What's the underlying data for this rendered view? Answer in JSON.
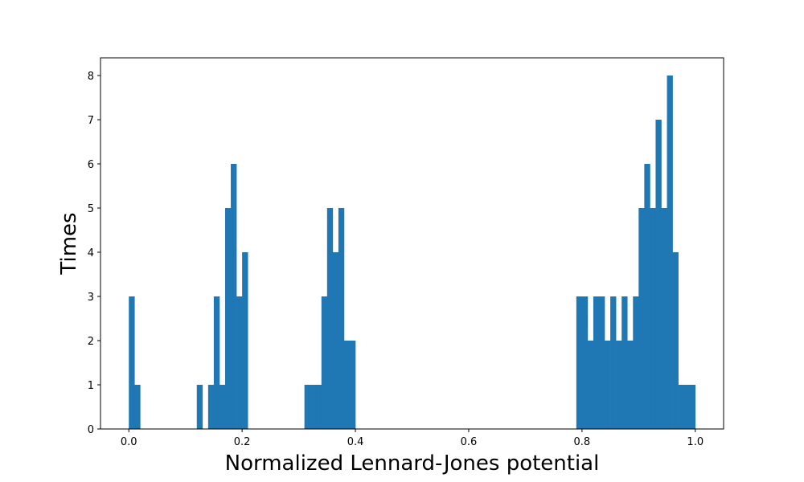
{
  "chart_data": {
    "type": "bar",
    "subtype": "histogram",
    "title": "",
    "xlabel": "Normalized Lennard-Jones potential",
    "ylabel": "Times",
    "xlim": [
      -0.05,
      1.05
    ],
    "ylim": [
      0,
      8.4
    ],
    "bin_width": 0.01,
    "xticks": [
      0.0,
      0.2,
      0.4,
      0.6,
      0.8,
      1.0
    ],
    "xtick_labels": [
      "0.0",
      "0.2",
      "0.4",
      "0.6",
      "0.8",
      "1.0"
    ],
    "yticks": [
      0,
      1,
      2,
      3,
      4,
      5,
      6,
      7,
      8
    ],
    "ytick_labels": [
      "0",
      "1",
      "2",
      "3",
      "4",
      "5",
      "6",
      "7",
      "8"
    ],
    "grid": false,
    "bar_color": "#1f77b4",
    "bins": [
      {
        "x": 0.0,
        "count": 3
      },
      {
        "x": 0.01,
        "count": 1
      },
      {
        "x": 0.12,
        "count": 1
      },
      {
        "x": 0.14,
        "count": 1
      },
      {
        "x": 0.15,
        "count": 3
      },
      {
        "x": 0.16,
        "count": 1
      },
      {
        "x": 0.17,
        "count": 5
      },
      {
        "x": 0.18,
        "count": 6
      },
      {
        "x": 0.19,
        "count": 3
      },
      {
        "x": 0.2,
        "count": 4
      },
      {
        "x": 0.31,
        "count": 1
      },
      {
        "x": 0.32,
        "count": 1
      },
      {
        "x": 0.33,
        "count": 1
      },
      {
        "x": 0.34,
        "count": 3
      },
      {
        "x": 0.35,
        "count": 5
      },
      {
        "x": 0.36,
        "count": 4
      },
      {
        "x": 0.37,
        "count": 5
      },
      {
        "x": 0.38,
        "count": 2
      },
      {
        "x": 0.39,
        "count": 2
      },
      {
        "x": 0.79,
        "count": 3
      },
      {
        "x": 0.8,
        "count": 3
      },
      {
        "x": 0.81,
        "count": 2
      },
      {
        "x": 0.82,
        "count": 3
      },
      {
        "x": 0.83,
        "count": 3
      },
      {
        "x": 0.84,
        "count": 2
      },
      {
        "x": 0.85,
        "count": 3
      },
      {
        "x": 0.86,
        "count": 2
      },
      {
        "x": 0.87,
        "count": 3
      },
      {
        "x": 0.88,
        "count": 2
      },
      {
        "x": 0.89,
        "count": 3
      },
      {
        "x": 0.9,
        "count": 5
      },
      {
        "x": 0.91,
        "count": 6
      },
      {
        "x": 0.92,
        "count": 5
      },
      {
        "x": 0.93,
        "count": 7
      },
      {
        "x": 0.94,
        "count": 5
      },
      {
        "x": 0.95,
        "count": 8
      },
      {
        "x": 0.96,
        "count": 4
      },
      {
        "x": 0.97,
        "count": 1
      },
      {
        "x": 0.98,
        "count": 1
      },
      {
        "x": 0.99,
        "count": 1
      }
    ]
  }
}
